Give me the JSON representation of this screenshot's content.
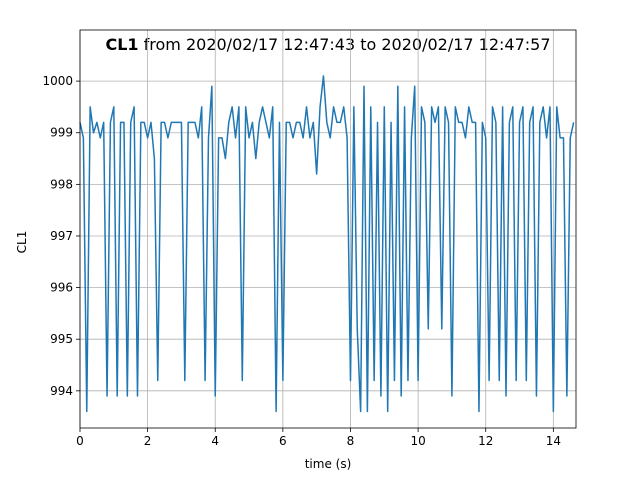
{
  "chart_data": {
    "type": "line",
    "title_bold": "CL1",
    "title_rest": "from 2020/02/17 12:47:43 to 2020/02/17 12:47:57",
    "xlabel": "time (s)",
    "ylabel": "CL1",
    "xlim": [
      0,
      14.67
    ],
    "ylim": [
      993.28,
      1000.99
    ],
    "xticks": [
      0,
      2,
      4,
      6,
      8,
      10,
      12,
      14
    ],
    "yticks": [
      994,
      995,
      996,
      997,
      998,
      999,
      1000
    ],
    "grid": true,
    "series": [
      {
        "name": "CL1",
        "color": "#1f77b4",
        "x": [
          0,
          0.1,
          0.2,
          0.3,
          0.4,
          0.5,
          0.6,
          0.7,
          0.8,
          0.9,
          1,
          1.1,
          1.2,
          1.3,
          1.4,
          1.5,
          1.6,
          1.7,
          1.8,
          1.9,
          2,
          2.1,
          2.2,
          2.3,
          2.4,
          2.5,
          2.6,
          2.7,
          2.8,
          2.9,
          3,
          3.1,
          3.2,
          3.3,
          3.4,
          3.5,
          3.6,
          3.7,
          3.8,
          3.9,
          4,
          4.1,
          4.2,
          4.3,
          4.4,
          4.5,
          4.6,
          4.7,
          4.8,
          4.9,
          5,
          5.1,
          5.2,
          5.3,
          5.4,
          5.5,
          5.6,
          5.7,
          5.8,
          5.9,
          6,
          6.1,
          6.2,
          6.3,
          6.4,
          6.5,
          6.6,
          6.7,
          6.8,
          6.9,
          7,
          7.1,
          7.2,
          7.3,
          7.4,
          7.5,
          7.6,
          7.7,
          7.8,
          7.9,
          8,
          8.1,
          8.2,
          8.3,
          8.4,
          8.5,
          8.6,
          8.7,
          8.8,
          8.9,
          9,
          9.1,
          9.2,
          9.3,
          9.4,
          9.5,
          9.6,
          9.7,
          9.8,
          9.9,
          10,
          10.1,
          10.2,
          10.3,
          10.4,
          10.5,
          10.6,
          10.7,
          10.8,
          10.9,
          11,
          11.1,
          11.2,
          11.3,
          11.4,
          11.5,
          11.6,
          11.7,
          11.8,
          11.9,
          12,
          12.1,
          12.2,
          12.3,
          12.4,
          12.5,
          12.6,
          12.7,
          12.8,
          12.9,
          13,
          13.1,
          13.2,
          13.3,
          13.4,
          13.5,
          13.6,
          13.7,
          13.8,
          13.9,
          14,
          14.1,
          14.2,
          14.3,
          14.4,
          14.5,
          14.6
        ],
        "values": [
          999.2,
          998.9,
          993.6,
          999.5,
          999.0,
          999.2,
          998.9,
          999.2,
          993.9,
          999.2,
          999.5,
          993.9,
          999.2,
          999.2,
          993.9,
          999.2,
          999.5,
          993.9,
          999.2,
          999.2,
          998.9,
          999.2,
          998.5,
          994.2,
          999.2,
          999.2,
          998.9,
          999.2,
          999.2,
          999.2,
          999.2,
          994.2,
          999.2,
          999.2,
          999.2,
          998.9,
          999.5,
          994.2,
          998.9,
          999.9,
          993.9,
          998.9,
          998.9,
          998.5,
          999.2,
          999.5,
          998.9,
          999.5,
          994.2,
          999.5,
          998.9,
          999.2,
          998.5,
          999.2,
          999.5,
          999.2,
          998.9,
          999.5,
          993.6,
          999.2,
          994.2,
          999.2,
          999.2,
          998.9,
          999.2,
          999.2,
          998.9,
          999.5,
          998.9,
          999.2,
          998.2,
          999.5,
          1000.1,
          999.2,
          998.9,
          999.5,
          999.2,
          999.2,
          999.5,
          998.9,
          994.2,
          999.5,
          995.2,
          993.6,
          999.9,
          993.6,
          999.5,
          994.2,
          999.2,
          993.9,
          999.5,
          993.6,
          999.2,
          994.2,
          999.9,
          993.9,
          999.5,
          994.2,
          998.9,
          999.9,
          994.2,
          999.5,
          999.2,
          995.2,
          999.5,
          999.2,
          999.5,
          995.2,
          999.5,
          999.2,
          993.9,
          999.5,
          999.2,
          999.2,
          998.9,
          999.5,
          999.2,
          999.2,
          993.6,
          999.2,
          998.9,
          994.2,
          999.5,
          999.2,
          994.2,
          999.5,
          993.9,
          999.2,
          999.5,
          994.2,
          999.2,
          999.5,
          994.2,
          999.2,
          999.5,
          993.9,
          999.2,
          999.5,
          998.9,
          999.5,
          993.6,
          999.5,
          998.9,
          998.9,
          993.9,
          998.9,
          999.2
        ]
      }
    ]
  }
}
